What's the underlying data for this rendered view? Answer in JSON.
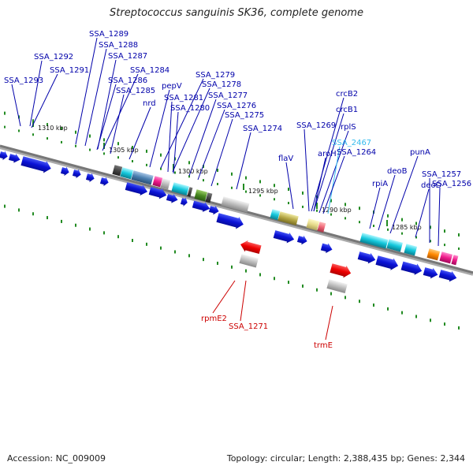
{
  "title": "Streptococcus sanguinis SK36, complete genome",
  "footer": {
    "accession": "Accession: NC_009009",
    "stats": "Topology: circular; Length: 2,388,435 bp; Genes: 2,344"
  },
  "scale_labels": [
    "1310 kbp",
    "1305 kbp",
    "1300 kbp",
    "1295 kbp",
    "1290 kbp",
    "1285 kbp"
  ],
  "top_gene_labels": [
    "SSA_1289",
    "SSA_1288",
    "SSA_1292",
    "SSA_1287",
    "SSA_1291",
    "SSA_1293",
    "SSA_1284",
    "SSA_1286",
    "pepV",
    "SSA_1285",
    "SSA_1279",
    "SSA_1278",
    "nrd",
    "SSA_1281",
    "SSA_1277",
    "SSA_1280",
    "SSA_1276",
    "SSA_1275",
    "SSA_1274",
    "crcB2",
    "crcB1",
    "SSA_1269",
    "rplS",
    "SSA_2467",
    "aroH",
    "SSA_1264",
    "flaV",
    "punA",
    "deoB",
    "deoD",
    "rpiA",
    "SSA_1257",
    "SSA_1256"
  ],
  "bottom_gene_labels": [
    "rpmE2",
    "SSA_1271",
    "trmE"
  ],
  "colors": {
    "forward_gene": "#0a12d6",
    "reverse_gene": "#ee0000",
    "forward_label": "#0000aa",
    "highlight_label": "#33bbee",
    "reverse_label": "#cc0000",
    "backbone": "#777777",
    "tick": "#228b22"
  }
}
